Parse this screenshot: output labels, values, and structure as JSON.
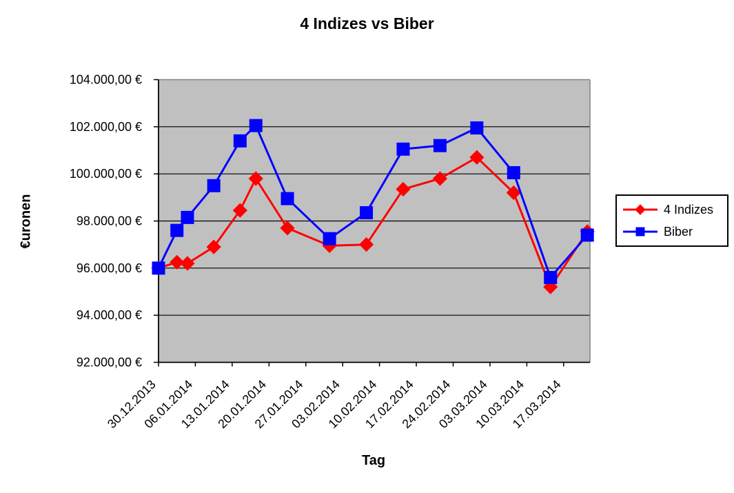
{
  "chart_data": {
    "type": "line",
    "title": "4 Indizes vs Biber",
    "xlabel": "Tag",
    "ylabel": "€uronen",
    "plot_background": "#C0C0C0",
    "plot_border_color": "#808080",
    "axis_color": "#000000",
    "gridline_color": "#000000",
    "grid": "horizontal-on",
    "legend_position": "right",
    "ylim": [
      92000,
      104000
    ],
    "x_axis_max_days": 82,
    "y_ticks": [
      {
        "value": 92000,
        "label": "92.000,00 €"
      },
      {
        "value": 94000,
        "label": "94.000,00 €"
      },
      {
        "value": 96000,
        "label": "96.000,00 €"
      },
      {
        "value": 98000,
        "label": "98.000,00 €"
      },
      {
        "value": 100000,
        "label": "100.000,00 €"
      },
      {
        "value": 102000,
        "label": "102.000,00 €"
      },
      {
        "value": 104000,
        "label": "104.000,00 €"
      }
    ],
    "x_ticks": [
      {
        "day": 0,
        "label": "30.12.2013"
      },
      {
        "day": 7,
        "label": "06.01.2014"
      },
      {
        "day": 14,
        "label": "13.01.2014"
      },
      {
        "day": 21,
        "label": "20.01.2014"
      },
      {
        "day": 28,
        "label": "27.01.2014"
      },
      {
        "day": 35,
        "label": "03.02.2014"
      },
      {
        "day": 42,
        "label": "10.02.2014"
      },
      {
        "day": 49,
        "label": "17.02.2014"
      },
      {
        "day": 56,
        "label": "24.02.2014"
      },
      {
        "day": 63,
        "label": "03.03.2014"
      },
      {
        "day": 70,
        "label": "10.03.2014"
      },
      {
        "day": 77,
        "label": "17.03.2014"
      }
    ],
    "series": [
      {
        "name": "4 Indizes",
        "color": "#FF0000",
        "marker": "diamond",
        "points": [
          {
            "day": 0,
            "value": 96000
          },
          {
            "day": 3.5,
            "value": 96250
          },
          {
            "day": 5.5,
            "value": 96200
          },
          {
            "day": 10.5,
            "value": 96900
          },
          {
            "day": 15.5,
            "value": 98450
          },
          {
            "day": 18.5,
            "value": 99800
          },
          {
            "day": 24.5,
            "value": 97700
          },
          {
            "day": 32.5,
            "value": 96950
          },
          {
            "day": 39.5,
            "value": 97000
          },
          {
            "day": 46.5,
            "value": 99350
          },
          {
            "day": 53.5,
            "value": 99800
          },
          {
            "day": 60.5,
            "value": 100700
          },
          {
            "day": 67.5,
            "value": 99200
          },
          {
            "day": 74.5,
            "value": 95200
          },
          {
            "day": 81.5,
            "value": 97550
          }
        ]
      },
      {
        "name": "Biber",
        "color": "#0000FF",
        "marker": "square",
        "points": [
          {
            "day": 0,
            "value": 96000
          },
          {
            "day": 3.5,
            "value": 97600
          },
          {
            "day": 5.5,
            "value": 98150
          },
          {
            "day": 10.5,
            "value": 99500
          },
          {
            "day": 15.5,
            "value": 101400
          },
          {
            "day": 18.5,
            "value": 102050
          },
          {
            "day": 24.5,
            "value": 98950
          },
          {
            "day": 32.5,
            "value": 97250
          },
          {
            "day": 39.5,
            "value": 98350
          },
          {
            "day": 46.5,
            "value": 101050
          },
          {
            "day": 53.5,
            "value": 101200
          },
          {
            "day": 60.5,
            "value": 101950
          },
          {
            "day": 67.5,
            "value": 100050
          },
          {
            "day": 74.5,
            "value": 95600
          },
          {
            "day": 81.5,
            "value": 97400
          }
        ]
      }
    ]
  }
}
